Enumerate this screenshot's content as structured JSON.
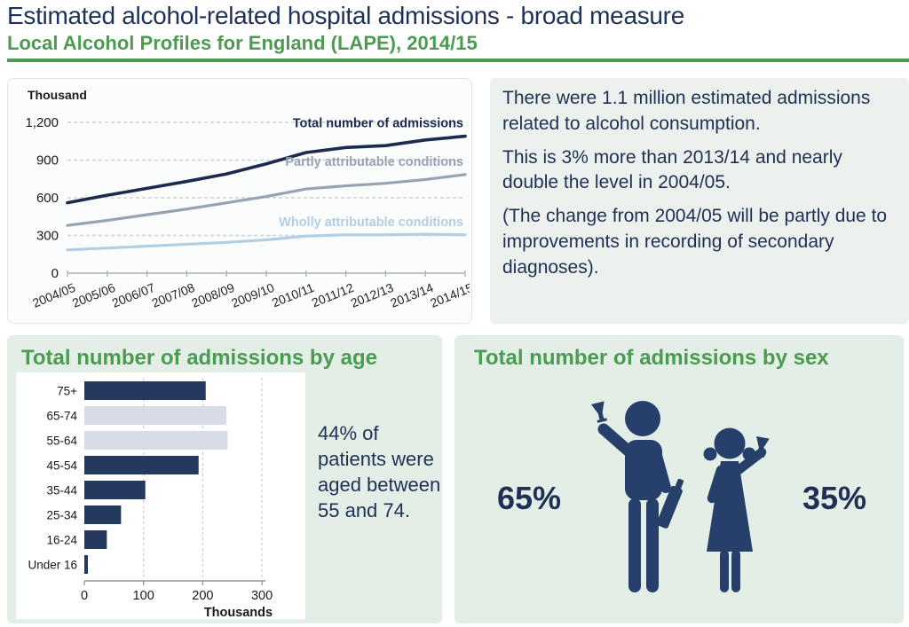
{
  "page": {
    "title": "Estimated alcohol-related hospital admissions - broad measure",
    "subtitle": "Local Alcohol Profiles for England (LAPE), 2014/15"
  },
  "colors": {
    "navy_text": "#1f3054",
    "green_accent": "#4b9b51",
    "panel_mint": "#e3eee7",
    "panel_summary": "#ecf1ee",
    "bar_dark": "#24395e",
    "bar_light": "#d8dce7",
    "pictogram_navy": "#27406b"
  },
  "summary": {
    "paragraphs": [
      "There were 1.1 million estimated admissions related to alcohol consumption.",
      "This is 3% more than 2013/14 and nearly double the level in 2004/05.",
      "(The change from 2004/05 will be partly due to improvements in recording of secondary diagnoses)."
    ]
  },
  "chart_data": [
    {
      "type": "line",
      "title": "",
      "unit_label": "Thousand",
      "x": [
        "2004/05",
        "2005/06",
        "2006/07",
        "2007/08",
        "2008/09",
        "2009/10",
        "2010/11",
        "2011/12",
        "2012/13",
        "2013/14",
        "2014/15"
      ],
      "series": [
        {
          "name": "Total number of admissions",
          "color": "#1b2a4e",
          "values": [
            560,
            620,
            675,
            730,
            790,
            870,
            960,
            1000,
            1015,
            1060,
            1090
          ]
        },
        {
          "name": "Partly attributable conditions",
          "color": "#97a2b2",
          "values": [
            380,
            420,
            465,
            510,
            560,
            610,
            670,
            695,
            715,
            745,
            785
          ]
        },
        {
          "name": "Wholly attributable conditions",
          "color": "#b3cde3",
          "values": [
            185,
            200,
            215,
            230,
            245,
            265,
            295,
            305,
            305,
            310,
            305
          ]
        }
      ],
      "ylim": [
        0,
        1200
      ],
      "yticks": [
        0,
        300,
        600,
        900,
        1200
      ],
      "ytick_labels": [
        "0",
        "300",
        "600",
        "900",
        "1,200"
      ],
      "grid": "dashed-horizontal",
      "legend_position": "inline-labels"
    },
    {
      "type": "bar",
      "orientation": "horizontal",
      "title": "Total number of admissions by age",
      "categories": [
        "75+",
        "65-74",
        "55-64",
        "45-54",
        "35-44",
        "25-34",
        "16-24",
        "Under 16"
      ],
      "values": [
        205,
        240,
        242,
        193,
        103,
        62,
        38,
        6
      ],
      "highlighted_categories": [
        "65-74",
        "55-64"
      ],
      "xlabel": "Thousands",
      "xticks": [
        0,
        100,
        200,
        300
      ],
      "xtick_labels": [
        "0",
        "100",
        "200",
        "300"
      ],
      "xlim": [
        0,
        300
      ],
      "grid": "dashed-vertical"
    },
    {
      "type": "pictogram",
      "title": "Total number of admissions by sex",
      "categories": [
        "Male",
        "Female"
      ],
      "values": [
        65,
        35
      ]
    }
  ],
  "age_panel": {
    "title": "Total number of admissions by age",
    "note": "44% of patients were aged between 55 and 74."
  },
  "sex_panel": {
    "title": "Total number of admissions by sex",
    "male_pct": "65%",
    "female_pct": "35%"
  }
}
